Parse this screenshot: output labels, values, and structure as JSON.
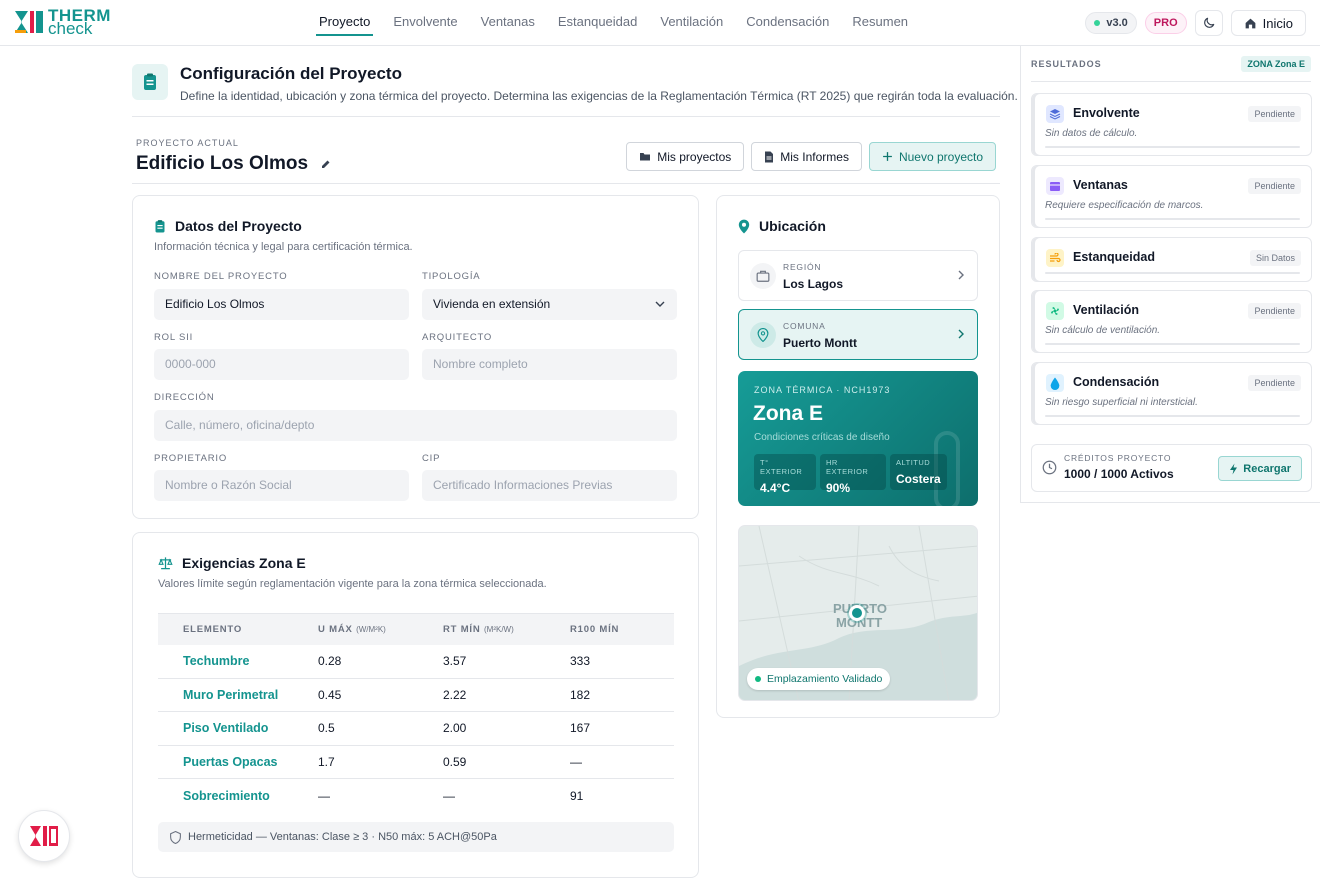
{
  "brand": {
    "line1": "THERM",
    "line2": "check"
  },
  "nav": {
    "items": [
      "Proyecto",
      "Envolvente",
      "Ventanas",
      "Estanqueidad",
      "Ventilación",
      "Condensación",
      "Resumen"
    ],
    "active": "Proyecto"
  },
  "topbar": {
    "version": "v3.0",
    "plan": "PRO",
    "home_label": "Inicio"
  },
  "header": {
    "title": "Configuración del Proyecto",
    "description": "Define la identidad, ubicación y zona térmica del proyecto. Determina las exigencias de la Reglamentación Térmica (RT 2025) que regirán toda la evaluación."
  },
  "project": {
    "current_label": "PROYECTO ACTUAL",
    "name": "Edificio Los Olmos",
    "buttons": {
      "my_projects": "Mis proyectos",
      "my_reports": "Mis Informes",
      "new_project": "Nuevo proyecto"
    }
  },
  "datos": {
    "title": "Datos del Proyecto",
    "subtitle": "Información técnica y legal para certificación térmica.",
    "fields": {
      "nombre": {
        "label": "NOMBRE DEL PROYECTO",
        "value": "Edificio Los Olmos"
      },
      "tipologia": {
        "label": "TIPOLOGÍA",
        "value": "Vivienda en extensión"
      },
      "rol": {
        "label": "ROL SII",
        "placeholder": "0000-000"
      },
      "arquitecto": {
        "label": "ARQUITECTO",
        "placeholder": "Nombre completo"
      },
      "direccion": {
        "label": "DIRECCIÓN",
        "placeholder": "Calle, número, oficina/depto"
      },
      "propietario": {
        "label": "PROPIETARIO",
        "placeholder": "Nombre o Razón Social"
      },
      "cip": {
        "label": "CIP",
        "placeholder": "Certificado Informaciones Previas"
      }
    }
  },
  "exigencias": {
    "title": "Exigencias Zona E",
    "subtitle": "Valores límite según reglamentación vigente para la zona térmica seleccionada.",
    "columns": {
      "elemento": "ELEMENTO",
      "umax": "U MÁX",
      "umax_unit": "(W/M²K)",
      "rtmin": "RT MÍN",
      "rtmin_unit": "(M²K/W)",
      "r100": "R100 MÍN"
    },
    "rows": [
      {
        "elemento": "Techumbre",
        "umax": "0.28",
        "rtmin": "3.57",
        "r100": "333"
      },
      {
        "elemento": "Muro Perimetral",
        "umax": "0.45",
        "rtmin": "2.22",
        "r100": "182"
      },
      {
        "elemento": "Piso Ventilado",
        "umax": "0.5",
        "rtmin": "2.00",
        "r100": "167"
      },
      {
        "elemento": "Puertas Opacas",
        "umax": "1.7",
        "rtmin": "0.59",
        "r100": "—"
      },
      {
        "elemento": "Sobrecimiento",
        "umax": "—",
        "rtmin": "—",
        "r100": "91"
      }
    ],
    "footnote": "Hermeticidad — Ventanas: Clase ≥ 3 · N50 máx: 5 ACH@50Pa"
  },
  "ubicacion": {
    "title": "Ubicación",
    "region": {
      "label": "REGIÓN",
      "value": "Los Lagos"
    },
    "comuna": {
      "label": "COMUNA",
      "value": "Puerto Montt"
    },
    "zona": {
      "label": "ZONA TÉRMICA · NCH1973",
      "name": "Zona E",
      "subtitle": "Condiciones críticas de diseño",
      "stats": [
        {
          "label": "T° EXTERIOR",
          "value": "4.4°C"
        },
        {
          "label": "HR EXTERIOR",
          "value": "90%"
        },
        {
          "label": "ALTITUD",
          "value": "Costera"
        }
      ]
    },
    "map": {
      "city_line1": "PUERTO",
      "city_line2": "MONTT",
      "status": "Emplazamiento Validado"
    }
  },
  "resultados": {
    "title": "RESULTADOS",
    "zone_badge": "ZONA Zona E",
    "items": [
      {
        "name": "Envolvente",
        "status": "Pendiente",
        "note": "Sin datos de cálculo.",
        "icon": "layers-icon",
        "color": "#4f6bd8",
        "progress": 0
      },
      {
        "name": "Ventanas",
        "status": "Pendiente",
        "note": "Requiere especificación de marcos.",
        "icon": "window-icon",
        "color": "#8b5cf6",
        "progress": 0
      },
      {
        "name": "Estanqueidad",
        "status": "Sin Datos",
        "note": "",
        "icon": "wind-icon",
        "color": "#f59e0b",
        "progress": 0
      },
      {
        "name": "Ventilación",
        "status": "Pendiente",
        "note": "Sin cálculo de ventilación.",
        "icon": "fan-icon",
        "color": "#10b981",
        "progress": 0
      },
      {
        "name": "Condensación",
        "status": "Pendiente",
        "note": "Sin riesgo superficial ni intersticial.",
        "icon": "drop-icon",
        "color": "#0ea5e9",
        "progress": 0
      }
    ],
    "credits": {
      "label": "CRÉDITOS PROYECTO",
      "value": "1000 / 1000 Activos",
      "button": "Recargar"
    }
  },
  "colors": {
    "accent": "#14948f",
    "accent_light": "#e6f4f3",
    "pro": "#be185d"
  }
}
